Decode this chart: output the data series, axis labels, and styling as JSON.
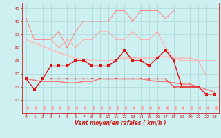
{
  "x": [
    0,
    1,
    2,
    3,
    4,
    5,
    6,
    7,
    8,
    9,
    10,
    11,
    12,
    13,
    14,
    15,
    16,
    17,
    18,
    19,
    20,
    21,
    22,
    23
  ],
  "line1": [
    41,
    33,
    33,
    33,
    36,
    30,
    36,
    40,
    40,
    40,
    40,
    44,
    44,
    40,
    44,
    44,
    44,
    41,
    44,
    null,
    null,
    null,
    null,
    null
  ],
  "line2": [
    33,
    null,
    null,
    33,
    30,
    33,
    30,
    33,
    33,
    36,
    36,
    33,
    33,
    36,
    33,
    33,
    36,
    30,
    26,
    26,
    26,
    25,
    19,
    null
  ],
  "line3_slope": [
    33,
    31.7,
    30.5,
    29.2,
    28,
    27,
    26,
    25.5,
    25,
    25,
    25,
    25.5,
    26,
    26,
    26,
    26,
    26.5,
    26.5,
    26,
    25,
    25,
    25,
    25,
    25
  ],
  "line4": [
    18,
    14,
    18,
    23,
    23,
    23,
    25,
    25,
    23,
    23,
    23,
    25,
    29,
    25,
    25,
    23,
    26,
    29,
    25,
    15,
    15,
    15,
    12,
    12
  ],
  "line5": [
    18,
    null,
    null,
    18,
    18,
    18,
    18,
    18,
    18,
    18,
    18,
    18,
    18,
    18,
    18,
    18,
    18,
    18,
    15,
    15,
    15,
    15,
    12,
    12
  ],
  "line6_slope": [
    18,
    17.5,
    17,
    17,
    17,
    16.5,
    16.5,
    17,
    17,
    18,
    18,
    18,
    18,
    18,
    18,
    17.5,
    17,
    17,
    16.5,
    16,
    16,
    15,
    14,
    13
  ],
  "line7_dashed": [
    7,
    7,
    7,
    7,
    7,
    7,
    7,
    7,
    7,
    7,
    7,
    7,
    7,
    7,
    7,
    7,
    7,
    7,
    7,
    7,
    7,
    7,
    7,
    7
  ],
  "bg_color": "#cff0f0",
  "grid_color": "#b0dede",
  "line1_color": "#ff8888",
  "line2_color": "#ffaaaa",
  "line3_color": "#ffbbbb",
  "line4_color": "#dd1111",
  "line5_color": "#ee4444",
  "line6_color": "#ff7777",
  "line7_color": "#ff9999",
  "xlabel": "Vent moyen/en rafales ( km/h )",
  "xlim": [
    -0.5,
    23.5
  ],
  "ylim": [
    5,
    47
  ],
  "yticks": [
    10,
    15,
    20,
    25,
    30,
    35,
    40,
    45
  ],
  "xticks": [
    0,
    1,
    2,
    3,
    4,
    5,
    6,
    7,
    8,
    9,
    10,
    11,
    12,
    13,
    14,
    15,
    16,
    17,
    18,
    19,
    20,
    21,
    22,
    23
  ]
}
